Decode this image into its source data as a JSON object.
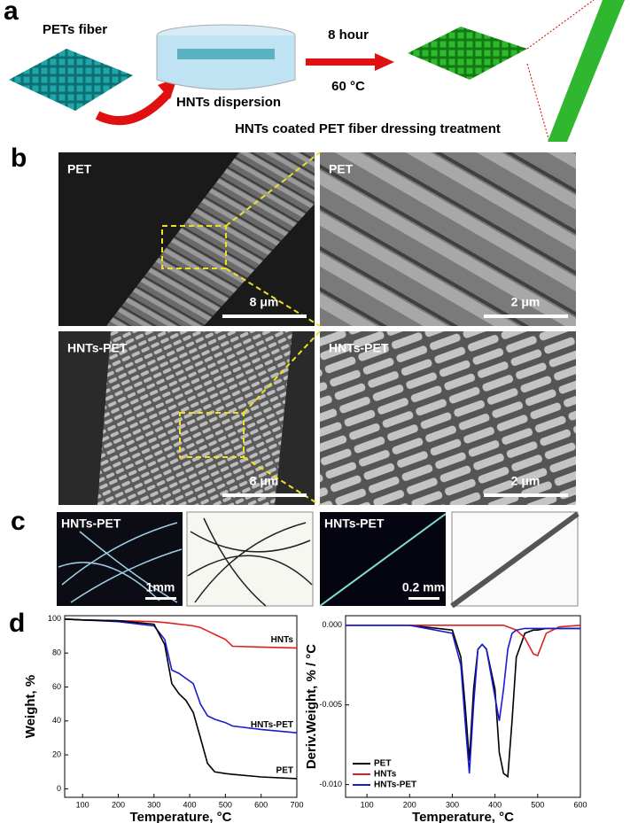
{
  "panel_labels": [
    "a",
    "b",
    "c",
    "d"
  ],
  "panel_a": {
    "fiber_label": "PETs fiber",
    "dispersion_label": "HNTs dispersion",
    "time": "8 hour",
    "temperature": "60 °C",
    "caption": "HNTs coated PET fiber dressing treatment"
  },
  "panel_b": {
    "images": [
      {
        "label": "PET",
        "scale": "8 μm"
      },
      {
        "label": "PET",
        "scale": "2 μm"
      },
      {
        "label": "HNTs-PET",
        "scale": "8 μm"
      },
      {
        "label": "HNTs-PET",
        "scale": "2 μm"
      }
    ]
  },
  "panel_c": {
    "images": [
      {
        "label": "HNTs-PET",
        "scale": "1mm"
      },
      {
        "label": "HNTs-PET",
        "scale": "0.2 mm"
      }
    ]
  },
  "chart_data": [
    {
      "type": "line",
      "xlabel": "Temperature, °C",
      "ylabel": "Weight, %",
      "legend": "inline",
      "x": [
        50,
        100,
        200,
        300,
        330,
        350,
        370,
        390,
        410,
        430,
        450,
        470,
        500,
        520,
        600,
        700
      ],
      "xlim": [
        50,
        700
      ],
      "xticks": [
        100,
        200,
        300,
        400,
        500,
        600,
        700
      ],
      "ylim": [
        -5,
        102
      ],
      "yticks": [
        0,
        20,
        40,
        60,
        80,
        100
      ],
      "series": [
        {
          "name": "HNTs",
          "color": "#e02020",
          "values": [
            100,
            99.5,
            99,
            98.5,
            98,
            97.5,
            97,
            96.5,
            96,
            95,
            93,
            91,
            88,
            84,
            83.5,
            83
          ]
        },
        {
          "name": "HNTs-PET",
          "color": "#1a1ad0",
          "values": [
            100,
            99.5,
            98.5,
            96,
            88,
            70,
            68,
            65,
            62,
            50,
            43,
            41,
            39,
            37,
            35,
            33
          ]
        },
        {
          "name": "PET",
          "color": "#000000",
          "values": [
            100,
            99.5,
            99,
            97,
            85,
            62,
            56,
            52,
            45,
            30,
            15,
            10,
            9,
            8.5,
            7,
            6
          ]
        }
      ]
    },
    {
      "type": "line",
      "xlabel": "Temperature, °C",
      "ylabel": "Deriv.Weight, % / °C",
      "legend": "lower left",
      "x": [
        50,
        100,
        200,
        300,
        320,
        330,
        340,
        350,
        360,
        370,
        380,
        400,
        410,
        420,
        430,
        440,
        450,
        470,
        490,
        500,
        520,
        550,
        600
      ],
      "xlim": [
        50,
        600
      ],
      "xticks": [
        100,
        200,
        300,
        400,
        500,
        600
      ],
      "ylim": [
        -0.0108,
        0.0006
      ],
      "yticks": [
        {
          "value": -0.01,
          "label": "-0.010"
        },
        {
          "value": -0.005,
          "label": "-0.005"
        },
        {
          "value": 0,
          "label": "0.000"
        }
      ],
      "series": [
        {
          "name": "PET",
          "color": "#000000",
          "values": [
            0,
            0,
            0,
            -0.0003,
            -0.002,
            -0.005,
            -0.0085,
            -0.004,
            -0.0015,
            -0.0012,
            -0.0015,
            -0.004,
            -0.008,
            -0.0093,
            -0.0095,
            -0.006,
            -0.002,
            -0.0005,
            -0.0003,
            -0.0003,
            -0.0002,
            -0.0002,
            -0.0002
          ]
        },
        {
          "name": "HNTs",
          "color": "#e02020",
          "values": [
            0,
            0,
            0,
            0,
            0,
            0,
            0,
            0,
            0,
            0,
            0,
            0,
            0,
            0,
            -0.0001,
            -0.0002,
            -0.0003,
            -0.0008,
            -0.0018,
            -0.0019,
            -0.0005,
            -0.0001,
            0
          ]
        },
        {
          "name": "HNTs-PET",
          "color": "#1a1ad0",
          "values": [
            0,
            0,
            0,
            -0.0005,
            -0.0025,
            -0.006,
            -0.0093,
            -0.005,
            -0.0015,
            -0.0012,
            -0.0015,
            -0.0045,
            -0.006,
            -0.004,
            -0.0015,
            -0.0005,
            -0.0003,
            -0.0002,
            -0.0002,
            -0.0002,
            -0.0002,
            -0.0002,
            -0.0002
          ]
        }
      ]
    }
  ]
}
